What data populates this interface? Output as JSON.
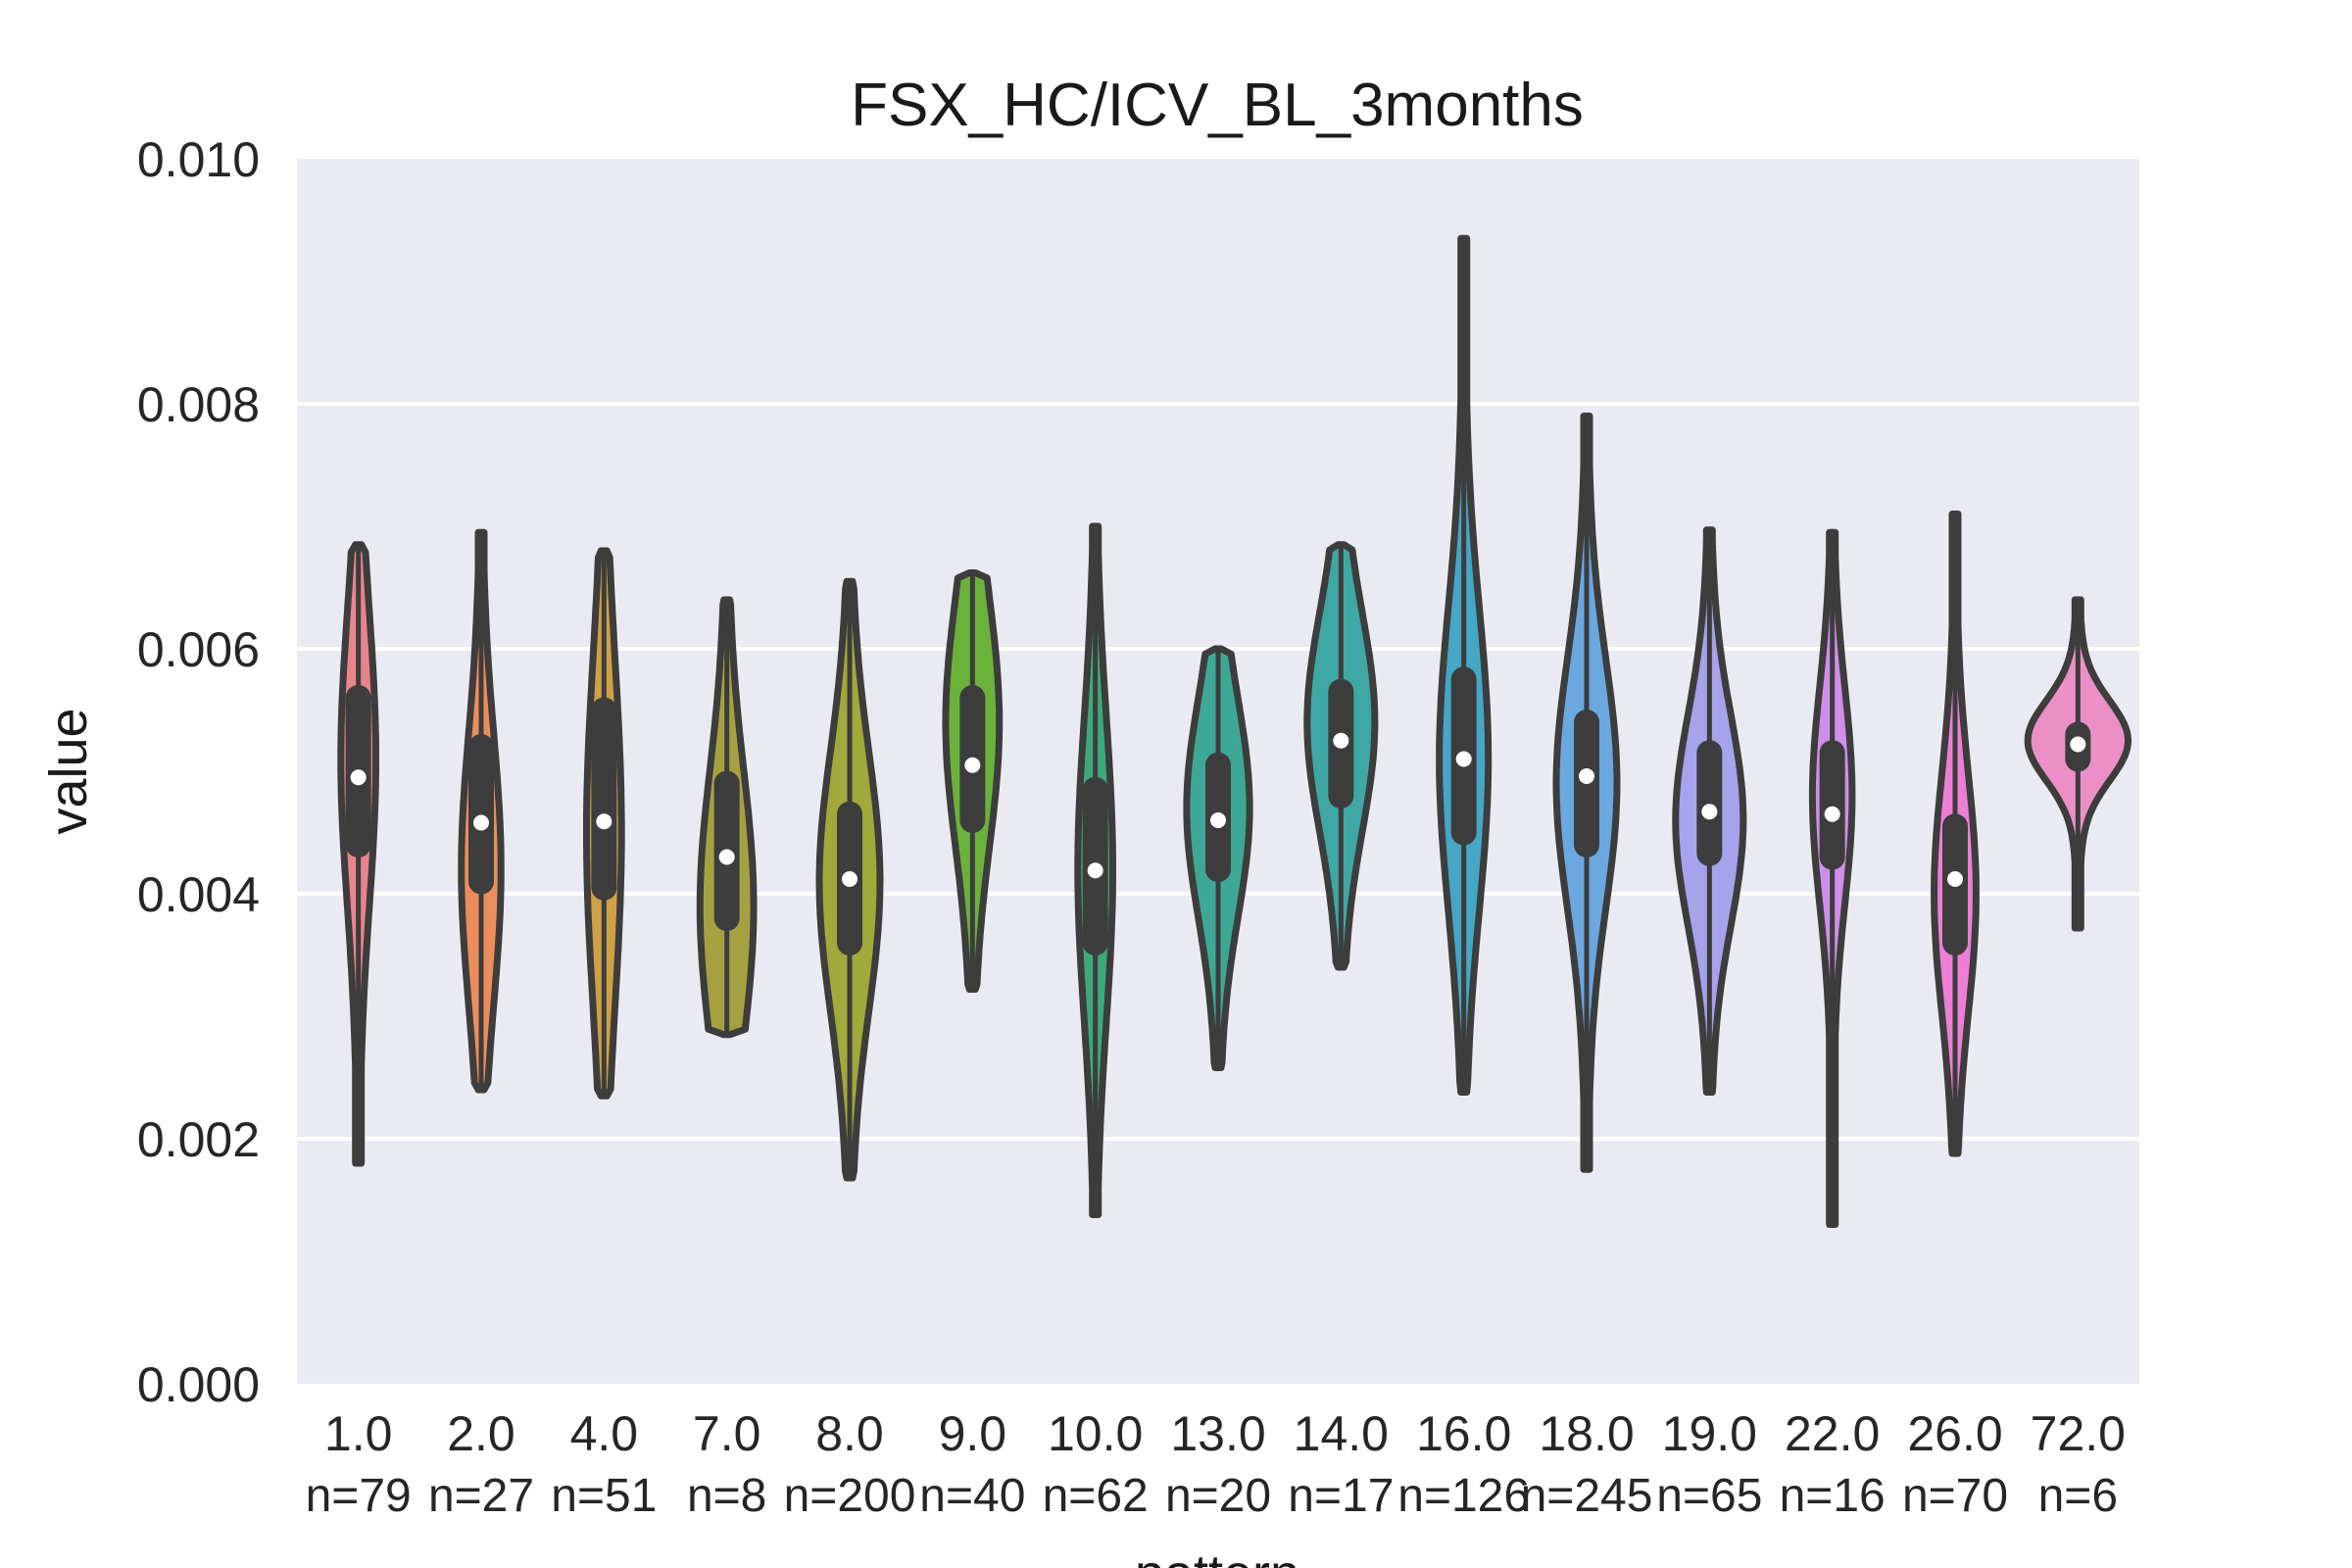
{
  "chart_data": {
    "type": "violin",
    "title": "FSX_HC/ICV_BL_3months",
    "xlabel": "pattern",
    "ylabel": "value",
    "ylim": [
      0.0,
      0.01
    ],
    "yticks": [
      "0.000",
      "0.002",
      "0.004",
      "0.006",
      "0.008",
      "0.010"
    ],
    "grid": true,
    "background_color": "#eaeaf2",
    "outline_color": "#3d3d3d",
    "categories": [
      {
        "label": "1.0",
        "n_label": "n=79",
        "color": "#e9848b",
        "min": 0.0018,
        "max": 0.00685,
        "q1": 0.0044,
        "median": 0.00495,
        "q3": 0.0056,
        "peak": 0.0051,
        "width": 0.3
      },
      {
        "label": "2.0",
        "n_label": "n=27",
        "color": "#ed8d5c",
        "min": 0.0024,
        "max": 0.00695,
        "q1": 0.0041,
        "median": 0.00458,
        "q3": 0.0052,
        "peak": 0.0042,
        "width": 0.34
      },
      {
        "label": "4.0",
        "n_label": "n=51",
        "color": "#d0a144",
        "min": 0.00235,
        "max": 0.0068,
        "q1": 0.00405,
        "median": 0.00459,
        "q3": 0.0055,
        "peak": 0.0045,
        "width": 0.3
      },
      {
        "label": "7.0",
        "n_label": "n=8",
        "color": "#a6a140",
        "min": 0.00285,
        "max": 0.0064,
        "q1": 0.0038,
        "median": 0.0043,
        "q3": 0.0049,
        "peak": 0.0039,
        "width": 0.46
      },
      {
        "label": "8.0",
        "n_label": "n=200",
        "color": "#a1a93a",
        "min": 0.00168,
        "max": 0.00655,
        "q1": 0.0036,
        "median": 0.00412,
        "q3": 0.00465,
        "peak": 0.0041,
        "width": 0.52
      },
      {
        "label": "9.0",
        "n_label": "n=40",
        "color": "#6bb23b",
        "min": 0.00322,
        "max": 0.00662,
        "q1": 0.0046,
        "median": 0.00505,
        "q3": 0.0056,
        "peak": 0.0054,
        "width": 0.46
      },
      {
        "label": "10.0",
        "n_label": "n=62",
        "color": "#3daa7a",
        "min": 0.00138,
        "max": 0.007,
        "q1": 0.0036,
        "median": 0.00419,
        "q3": 0.00485,
        "peak": 0.0042,
        "width": 0.3
      },
      {
        "label": "13.0",
        "n_label": "n=20",
        "color": "#3da896",
        "min": 0.00258,
        "max": 0.006,
        "q1": 0.0042,
        "median": 0.0046,
        "q3": 0.00505,
        "peak": 0.0047,
        "width": 0.54
      },
      {
        "label": "14.0",
        "n_label": "n=17",
        "color": "#3fa8a5",
        "min": 0.0034,
        "max": 0.00685,
        "q1": 0.0048,
        "median": 0.00525,
        "q3": 0.00565,
        "peak": 0.0054,
        "width": 0.58
      },
      {
        "label": "16.0",
        "n_label": "n=126",
        "color": "#45a7c6",
        "min": 0.00238,
        "max": 0.00935,
        "q1": 0.0045,
        "median": 0.0051,
        "q3": 0.00575,
        "peak": 0.0051,
        "width": 0.42
      },
      {
        "label": "18.0",
        "n_label": "n=245",
        "color": "#6ca8e0",
        "min": 0.00175,
        "max": 0.0079,
        "q1": 0.0044,
        "median": 0.00496,
        "q3": 0.0054,
        "peak": 0.0049,
        "width": 0.52
      },
      {
        "label": "19.0",
        "n_label": "n=65",
        "color": "#a4a3ec",
        "min": 0.00238,
        "max": 0.00697,
        "q1": 0.00433,
        "median": 0.00467,
        "q3": 0.00515,
        "peak": 0.0046,
        "width": 0.58
      },
      {
        "label": "22.0",
        "n_label": "n=16",
        "color": "#d08ee8",
        "min": 0.0013,
        "max": 0.00695,
        "q1": 0.0043,
        "median": 0.00465,
        "q3": 0.00515,
        "peak": 0.0048,
        "width": 0.34
      },
      {
        "label": "26.0",
        "n_label": "n=70",
        "color": "#ec7fd5",
        "min": 0.00188,
        "max": 0.0071,
        "q1": 0.0036,
        "median": 0.00412,
        "q3": 0.00455,
        "peak": 0.004,
        "width": 0.36
      },
      {
        "label": "72.0",
        "n_label": "n=6",
        "color": "#eb8fc6",
        "min": 0.00372,
        "max": 0.0064,
        "q1": 0.0051,
        "median": 0.00522,
        "q3": 0.0053,
        "peak": 0.00525,
        "width": 0.86
      }
    ]
  }
}
